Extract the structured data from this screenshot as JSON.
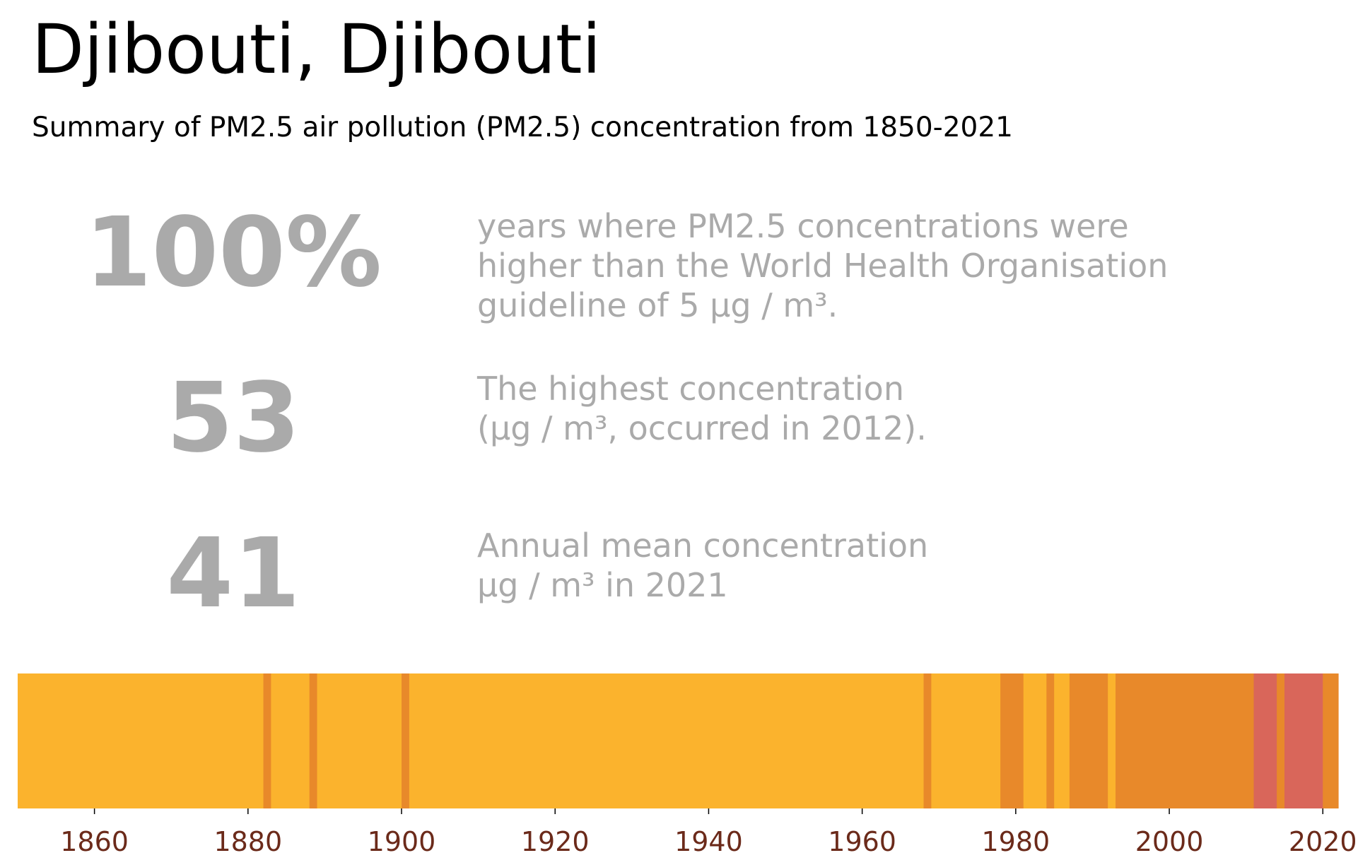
{
  "header": {
    "title": "Djibouti, Djibouti",
    "subtitle": "Summary of PM2.5 air pollution (PM2.5) concentration from 1850-2021"
  },
  "stats": [
    {
      "value": "100%",
      "lines": [
        "years where PM2.5 concentrations were",
        "higher than the World Health Organisation",
        "guideline of 5 µg / m³."
      ]
    },
    {
      "value": "53",
      "lines": [
        "The highest concentration",
        "(µg / m³, occurred in 2012)."
      ]
    },
    {
      "value": "41",
      "lines": [
        "Annual mean concentration",
        "µg / m³ in 2021"
      ]
    }
  ],
  "chart_data": {
    "type": "heatmap",
    "xlim": [
      1850,
      2022
    ],
    "x_ticks": [
      1860,
      1880,
      1900,
      1920,
      1940,
      1960,
      1980,
      2000,
      2020
    ],
    "colors": {
      "low": "#fbb32d",
      "mid": "#e8892a",
      "high": "#d9665a",
      "tick_label": "#6b2a1a"
    },
    "segments": [
      {
        "start": 1850,
        "end": 1882,
        "level": "low"
      },
      {
        "start": 1882,
        "end": 1883,
        "level": "mid"
      },
      {
        "start": 1883,
        "end": 1888,
        "level": "low"
      },
      {
        "start": 1888,
        "end": 1889,
        "level": "mid"
      },
      {
        "start": 1889,
        "end": 1900,
        "level": "low"
      },
      {
        "start": 1900,
        "end": 1901,
        "level": "mid"
      },
      {
        "start": 1901,
        "end": 1968,
        "level": "low"
      },
      {
        "start": 1968,
        "end": 1969,
        "level": "mid"
      },
      {
        "start": 1969,
        "end": 1978,
        "level": "low"
      },
      {
        "start": 1978,
        "end": 1981,
        "level": "mid"
      },
      {
        "start": 1981,
        "end": 1984,
        "level": "low"
      },
      {
        "start": 1984,
        "end": 1985,
        "level": "mid"
      },
      {
        "start": 1985,
        "end": 1987,
        "level": "low"
      },
      {
        "start": 1987,
        "end": 1992,
        "level": "mid"
      },
      {
        "start": 1992,
        "end": 1993,
        "level": "low"
      },
      {
        "start": 1993,
        "end": 2011,
        "level": "mid"
      },
      {
        "start": 2011,
        "end": 2014,
        "level": "high"
      },
      {
        "start": 2014,
        "end": 2015,
        "level": "mid"
      },
      {
        "start": 2015,
        "end": 2020,
        "level": "high"
      },
      {
        "start": 2020,
        "end": 2022,
        "level": "mid"
      }
    ]
  }
}
